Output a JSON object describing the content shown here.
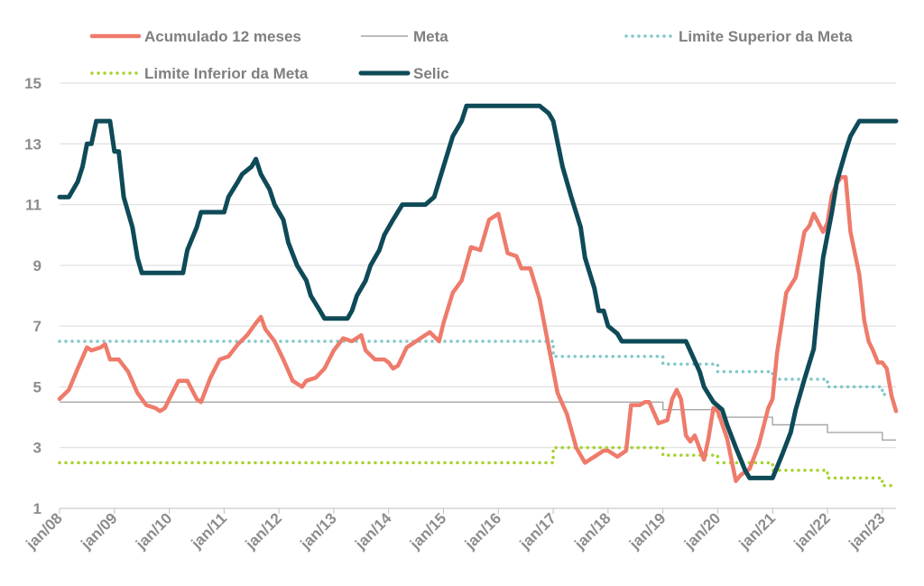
{
  "chart_data": {
    "type": "line",
    "title": "",
    "xlabel": "",
    "ylabel": "",
    "ylim": [
      1,
      15
    ],
    "yticks": [
      1,
      3,
      5,
      7,
      9,
      11,
      13,
      15
    ],
    "xlim": [
      2008.0,
      2023.25
    ],
    "xticks": [
      {
        "label": "jan/08",
        "x": 2008
      },
      {
        "label": "jan/09",
        "x": 2009
      },
      {
        "label": "jan/10",
        "x": 2010
      },
      {
        "label": "jan/11",
        "x": 2011
      },
      {
        "label": "jan/12",
        "x": 2012
      },
      {
        "label": "jan/13",
        "x": 2013
      },
      {
        "label": "jan/14",
        "x": 2014
      },
      {
        "label": "jan/15",
        "x": 2015
      },
      {
        "label": "jan/16",
        "x": 2016
      },
      {
        "label": "jan/17",
        "x": 2017
      },
      {
        "label": "jan/18",
        "x": 2018
      },
      {
        "label": "jan/19",
        "x": 2019
      },
      {
        "label": "jan/20",
        "x": 2020
      },
      {
        "label": "jan/21",
        "x": 2021
      },
      {
        "label": "jan/22",
        "x": 2022
      },
      {
        "label": "jan/23",
        "x": 2023
      }
    ],
    "grid": true,
    "legend_position": "top",
    "series": [
      {
        "name": "Acumulado 12 meses",
        "color": "#ee7b6b",
        "style": "solid-thick",
        "points": [
          [
            2008.0,
            4.6
          ],
          [
            2008.17,
            4.9
          ],
          [
            2008.33,
            5.6
          ],
          [
            2008.5,
            6.3
          ],
          [
            2008.58,
            6.2
          ],
          [
            2008.75,
            6.3
          ],
          [
            2008.83,
            6.4
          ],
          [
            2008.92,
            5.9
          ],
          [
            2009.08,
            5.9
          ],
          [
            2009.25,
            5.5
          ],
          [
            2009.42,
            4.8
          ],
          [
            2009.58,
            4.4
          ],
          [
            2009.75,
            4.3
          ],
          [
            2009.83,
            4.2
          ],
          [
            2009.92,
            4.3
          ],
          [
            2010.0,
            4.6
          ],
          [
            2010.17,
            5.2
          ],
          [
            2010.33,
            5.2
          ],
          [
            2010.5,
            4.6
          ],
          [
            2010.58,
            4.5
          ],
          [
            2010.75,
            5.3
          ],
          [
            2010.92,
            5.9
          ],
          [
            2011.08,
            6.0
          ],
          [
            2011.25,
            6.4
          ],
          [
            2011.42,
            6.7
          ],
          [
            2011.58,
            7.1
          ],
          [
            2011.67,
            7.3
          ],
          [
            2011.75,
            6.9
          ],
          [
            2011.92,
            6.5
          ],
          [
            2012.08,
            5.9
          ],
          [
            2012.25,
            5.2
          ],
          [
            2012.42,
            5.0
          ],
          [
            2012.5,
            5.2
          ],
          [
            2012.67,
            5.3
          ],
          [
            2012.83,
            5.6
          ],
          [
            2013.0,
            6.2
          ],
          [
            2013.17,
            6.6
          ],
          [
            2013.33,
            6.5
          ],
          [
            2013.5,
            6.7
          ],
          [
            2013.58,
            6.2
          ],
          [
            2013.75,
            5.9
          ],
          [
            2013.92,
            5.9
          ],
          [
            2014.0,
            5.8
          ],
          [
            2014.08,
            5.6
          ],
          [
            2014.17,
            5.7
          ],
          [
            2014.33,
            6.3
          ],
          [
            2014.5,
            6.5
          ],
          [
            2014.58,
            6.6
          ],
          [
            2014.75,
            6.8
          ],
          [
            2014.92,
            6.5
          ],
          [
            2015.0,
            7.1
          ],
          [
            2015.17,
            8.1
          ],
          [
            2015.33,
            8.5
          ],
          [
            2015.5,
            9.6
          ],
          [
            2015.67,
            9.5
          ],
          [
            2015.83,
            10.5
          ],
          [
            2016.0,
            10.7
          ],
          [
            2016.17,
            9.4
          ],
          [
            2016.33,
            9.3
          ],
          [
            2016.42,
            8.9
          ],
          [
            2016.58,
            8.9
          ],
          [
            2016.75,
            7.9
          ],
          [
            2016.92,
            6.3
          ],
          [
            2017.08,
            4.8
          ],
          [
            2017.25,
            4.1
          ],
          [
            2017.42,
            3.0
          ],
          [
            2017.58,
            2.5
          ],
          [
            2017.75,
            2.7
          ],
          [
            2017.92,
            2.9
          ],
          [
            2018.0,
            2.9
          ],
          [
            2018.17,
            2.7
          ],
          [
            2018.33,
            2.9
          ],
          [
            2018.42,
            4.4
          ],
          [
            2018.58,
            4.4
          ],
          [
            2018.67,
            4.5
          ],
          [
            2018.75,
            4.5
          ],
          [
            2018.92,
            3.8
          ],
          [
            2019.08,
            3.9
          ],
          [
            2019.17,
            4.6
          ],
          [
            2019.25,
            4.9
          ],
          [
            2019.33,
            4.6
          ],
          [
            2019.42,
            3.4
          ],
          [
            2019.5,
            3.2
          ],
          [
            2019.58,
            3.4
          ],
          [
            2019.75,
            2.6
          ],
          [
            2019.83,
            3.3
          ],
          [
            2019.92,
            4.3
          ],
          [
            2020.0,
            4.2
          ],
          [
            2020.17,
            3.3
          ],
          [
            2020.33,
            1.9
          ],
          [
            2020.42,
            2.1
          ],
          [
            2020.58,
            2.3
          ],
          [
            2020.75,
            3.1
          ],
          [
            2020.92,
            4.3
          ],
          [
            2021.0,
            4.6
          ],
          [
            2021.08,
            6.1
          ],
          [
            2021.25,
            8.1
          ],
          [
            2021.42,
            8.6
          ],
          [
            2021.58,
            10.1
          ],
          [
            2021.67,
            10.3
          ],
          [
            2021.75,
            10.7
          ],
          [
            2021.92,
            10.1
          ],
          [
            2022.0,
            10.4
          ],
          [
            2022.08,
            11.3
          ],
          [
            2022.17,
            11.7
          ],
          [
            2022.25,
            11.9
          ],
          [
            2022.33,
            11.9
          ],
          [
            2022.42,
            10.1
          ],
          [
            2022.58,
            8.7
          ],
          [
            2022.67,
            7.2
          ],
          [
            2022.75,
            6.5
          ],
          [
            2022.83,
            6.2
          ],
          [
            2022.92,
            5.8
          ],
          [
            2023.0,
            5.8
          ],
          [
            2023.08,
            5.6
          ],
          [
            2023.17,
            4.7
          ],
          [
            2023.25,
            4.2
          ]
        ]
      },
      {
        "name": "Meta",
        "color": "#a6a6a6",
        "style": "solid-thin",
        "points": [
          [
            2008.0,
            4.5
          ],
          [
            2019.0,
            4.5
          ],
          [
            2019.0,
            4.25
          ],
          [
            2020.0,
            4.25
          ],
          [
            2020.0,
            4.0
          ],
          [
            2021.0,
            4.0
          ],
          [
            2021.0,
            3.75
          ],
          [
            2022.0,
            3.75
          ],
          [
            2022.0,
            3.5
          ],
          [
            2023.0,
            3.5
          ],
          [
            2023.0,
            3.25
          ],
          [
            2023.25,
            3.25
          ]
        ]
      },
      {
        "name": "Limite Superior da Meta",
        "color": "#7fc8c8",
        "style": "dotted",
        "points": [
          [
            2008.0,
            6.5
          ],
          [
            2017.0,
            6.5
          ],
          [
            2017.0,
            6.0
          ],
          [
            2019.0,
            6.0
          ],
          [
            2019.0,
            5.75
          ],
          [
            2020.0,
            5.75
          ],
          [
            2020.0,
            5.5
          ],
          [
            2021.0,
            5.5
          ],
          [
            2021.0,
            5.25
          ],
          [
            2022.0,
            5.25
          ],
          [
            2022.0,
            5.0
          ],
          [
            2023.0,
            5.0
          ],
          [
            2023.0,
            4.75
          ],
          [
            2023.25,
            4.75
          ]
        ]
      },
      {
        "name": "Limite Inferior da Meta",
        "color": "#a5d22d",
        "style": "dotted",
        "points": [
          [
            2008.0,
            2.5
          ],
          [
            2017.0,
            2.5
          ],
          [
            2017.0,
            3.0
          ],
          [
            2019.0,
            3.0
          ],
          [
            2019.0,
            2.75
          ],
          [
            2020.0,
            2.75
          ],
          [
            2020.0,
            2.5
          ],
          [
            2021.0,
            2.5
          ],
          [
            2021.0,
            2.25
          ],
          [
            2022.0,
            2.25
          ],
          [
            2022.0,
            2.0
          ],
          [
            2023.0,
            2.0
          ],
          [
            2023.0,
            1.75
          ],
          [
            2023.25,
            1.75
          ]
        ]
      },
      {
        "name": "Selic",
        "color": "#0e4a57",
        "style": "solid-thick",
        "points": [
          [
            2008.0,
            11.25
          ],
          [
            2008.17,
            11.25
          ],
          [
            2008.33,
            11.75
          ],
          [
            2008.42,
            12.25
          ],
          [
            2008.5,
            13.0
          ],
          [
            2008.58,
            13.0
          ],
          [
            2008.67,
            13.75
          ],
          [
            2008.92,
            13.75
          ],
          [
            2009.0,
            12.75
          ],
          [
            2009.08,
            12.75
          ],
          [
            2009.17,
            11.25
          ],
          [
            2009.33,
            10.25
          ],
          [
            2009.42,
            9.25
          ],
          [
            2009.5,
            8.75
          ],
          [
            2010.25,
            8.75
          ],
          [
            2010.33,
            9.5
          ],
          [
            2010.5,
            10.25
          ],
          [
            2010.58,
            10.75
          ],
          [
            2011.0,
            10.75
          ],
          [
            2011.08,
            11.25
          ],
          [
            2011.25,
            11.75
          ],
          [
            2011.33,
            12.0
          ],
          [
            2011.5,
            12.25
          ],
          [
            2011.58,
            12.5
          ],
          [
            2011.67,
            12.0
          ],
          [
            2011.83,
            11.5
          ],
          [
            2011.92,
            11.0
          ],
          [
            2012.08,
            10.5
          ],
          [
            2012.17,
            9.75
          ],
          [
            2012.33,
            9.0
          ],
          [
            2012.5,
            8.5
          ],
          [
            2012.58,
            8.0
          ],
          [
            2012.75,
            7.5
          ],
          [
            2012.83,
            7.25
          ],
          [
            2013.25,
            7.25
          ],
          [
            2013.33,
            7.5
          ],
          [
            2013.42,
            8.0
          ],
          [
            2013.58,
            8.5
          ],
          [
            2013.67,
            9.0
          ],
          [
            2013.83,
            9.5
          ],
          [
            2013.92,
            10.0
          ],
          [
            2014.08,
            10.5
          ],
          [
            2014.25,
            11.0
          ],
          [
            2014.67,
            11.0
          ],
          [
            2014.83,
            11.25
          ],
          [
            2015.0,
            12.25
          ],
          [
            2015.17,
            13.25
          ],
          [
            2015.33,
            13.75
          ],
          [
            2015.42,
            14.25
          ],
          [
            2016.75,
            14.25
          ],
          [
            2016.92,
            14.0
          ],
          [
            2017.0,
            13.75
          ],
          [
            2017.17,
            12.25
          ],
          [
            2017.33,
            11.25
          ],
          [
            2017.5,
            10.25
          ],
          [
            2017.58,
            9.25
          ],
          [
            2017.75,
            8.25
          ],
          [
            2017.83,
            7.5
          ],
          [
            2017.92,
            7.5
          ],
          [
            2018.0,
            7.0
          ],
          [
            2018.17,
            6.75
          ],
          [
            2018.25,
            6.5
          ],
          [
            2019.42,
            6.5
          ],
          [
            2019.67,
            5.5
          ],
          [
            2019.75,
            5.0
          ],
          [
            2019.92,
            4.5
          ],
          [
            2020.08,
            4.25
          ],
          [
            2020.17,
            3.75
          ],
          [
            2020.33,
            3.0
          ],
          [
            2020.5,
            2.25
          ],
          [
            2020.58,
            2.0
          ],
          [
            2021.0,
            2.0
          ],
          [
            2021.17,
            2.75
          ],
          [
            2021.33,
            3.5
          ],
          [
            2021.42,
            4.25
          ],
          [
            2021.58,
            5.25
          ],
          [
            2021.75,
            6.25
          ],
          [
            2021.83,
            7.75
          ],
          [
            2021.92,
            9.25
          ],
          [
            2022.08,
            10.75
          ],
          [
            2022.17,
            11.75
          ],
          [
            2022.33,
            12.75
          ],
          [
            2022.42,
            13.25
          ],
          [
            2022.58,
            13.75
          ],
          [
            2023.25,
            13.75
          ]
        ]
      }
    ]
  }
}
